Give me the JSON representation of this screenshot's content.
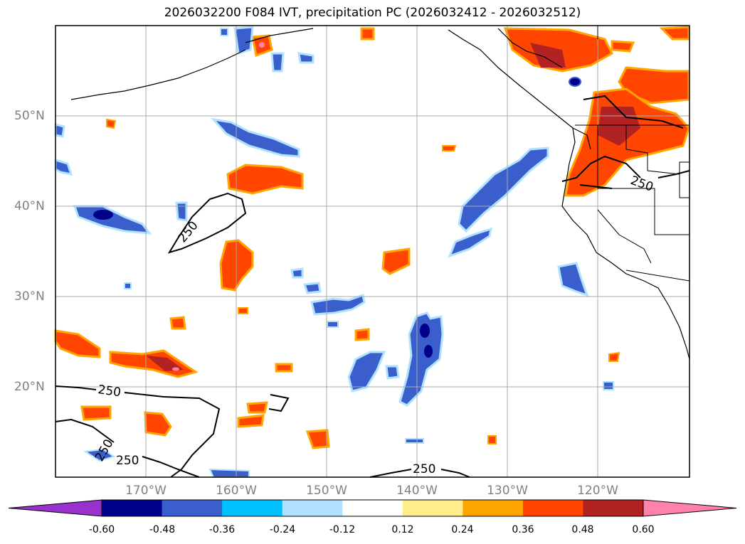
{
  "title": "2026032200 F084 IVT, precipitation PC (2026032412 - 2026032512)",
  "latitude_labels": [
    "50°N",
    "40°N",
    "30°N",
    "20°N"
  ],
  "longitude_labels": [
    "170°W",
    "160°W",
    "150°W",
    "140°W",
    "130°W",
    "120°W"
  ],
  "ivt_contour_value": "250",
  "colorbar": {
    "tick_labels": [
      "-0.60",
      "-0.48",
      "-0.36",
      "-0.24",
      "-0.12",
      "0.12",
      "0.24",
      "0.36",
      "0.48",
      "0.60"
    ],
    "colors": [
      "#9932cc",
      "#00008b",
      "#3a5fcd",
      "#00bfff",
      "#b0e2ff",
      "#ffffff",
      "#ffec8b",
      "#ffa500",
      "#ff4500",
      "#b22222",
      "#ff82ab"
    ]
  }
}
